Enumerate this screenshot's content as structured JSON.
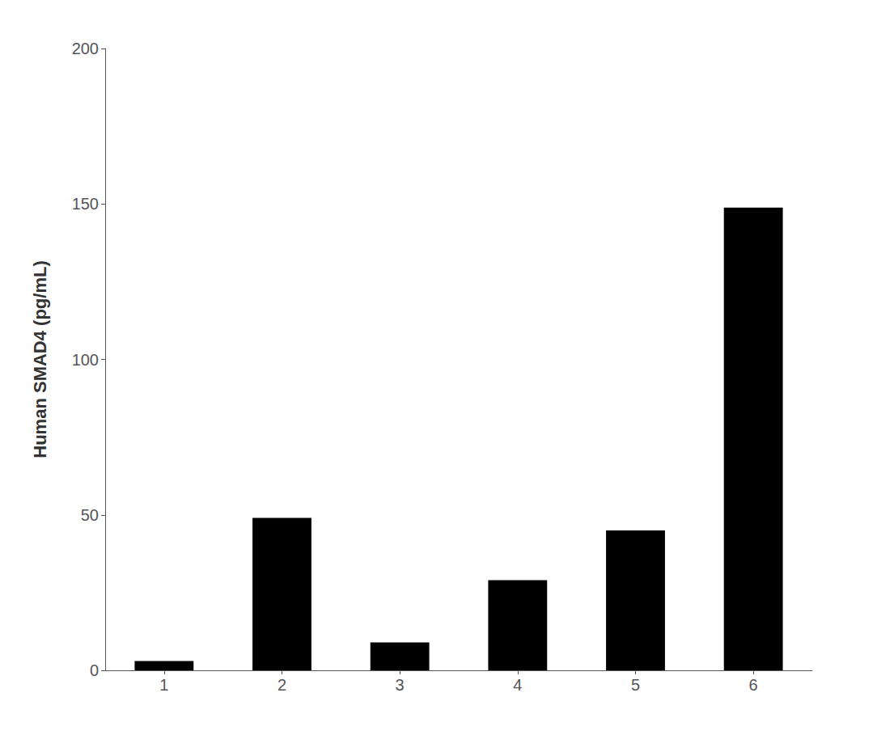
{
  "chart_data": {
    "type": "bar",
    "categories": [
      "1",
      "2",
      "3",
      "4",
      "5",
      "6"
    ],
    "values": [
      3.0,
      49.0,
      9.0,
      29.0,
      45.0,
      148.8
    ],
    "color": "#000000",
    "ylabel": "Human SMAD4 (pg/mL)",
    "ylim": [
      0,
      200
    ],
    "yticks": [
      0,
      50,
      100,
      150,
      200
    ],
    "grid": false
  }
}
